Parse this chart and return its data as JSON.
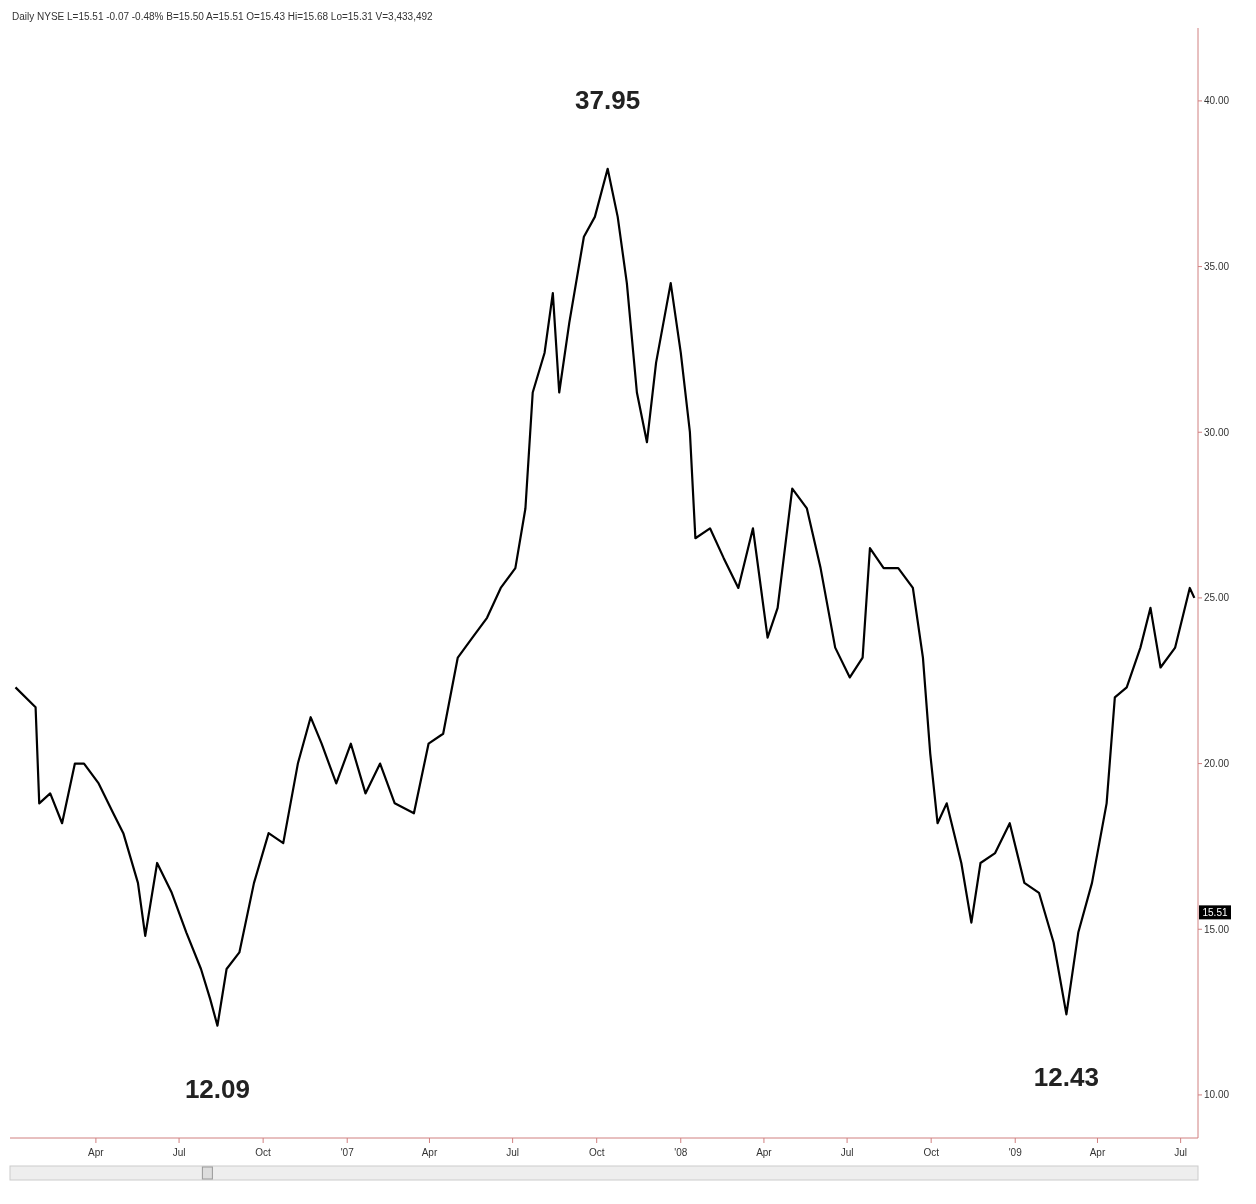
{
  "chart_data": {
    "type": "line",
    "title": "Daily NYSE L=15.51 -0.07 -0.48% B=15.50 A=15.51 O=15.43 Hi=15.68 Lo=15.31 V=3,433,492",
    "x": [
      "2006-01-03",
      "2006-01-25",
      "2006-01-29",
      "2006-02-10",
      "2006-02-23",
      "2006-03-09",
      "2006-03-19",
      "2006-04-04",
      "2006-04-20",
      "2006-05-01",
      "2006-05-17",
      "2006-05-25",
      "2006-06-07",
      "2006-06-23",
      "2006-07-09",
      "2006-07-25",
      "2006-08-04",
      "2006-08-12",
      "2006-08-22",
      "2006-09-05",
      "2006-09-21",
      "2006-10-07",
      "2006-10-23",
      "2006-11-08",
      "2006-11-22",
      "2006-12-04",
      "2006-12-20",
      "2007-01-05",
      "2007-01-21",
      "2007-02-06",
      "2007-02-22",
      "2007-03-15",
      "2007-03-31",
      "2007-04-16",
      "2007-05-02",
      "2007-05-18",
      "2007-06-03",
      "2007-06-18",
      "2007-07-04",
      "2007-07-15",
      "2007-07-23",
      "2007-08-05",
      "2007-08-14",
      "2007-08-21",
      "2007-09-01",
      "2007-09-17",
      "2007-09-29",
      "2007-10-13",
      "2007-10-24",
      "2007-11-03",
      "2007-11-14",
      "2007-11-25",
      "2007-12-05",
      "2007-12-21",
      "2008-01-01",
      "2008-01-11",
      "2008-01-17",
      "2008-02-02",
      "2008-02-17",
      "2008-03-04",
      "2008-03-20",
      "2008-04-05",
      "2008-04-16",
      "2008-05-02",
      "2008-05-18",
      "2008-06-02",
      "2008-06-18",
      "2008-07-04",
      "2008-07-18",
      "2008-07-26",
      "2008-08-10",
      "2008-08-26",
      "2008-09-11",
      "2008-09-22",
      "2008-09-30",
      "2008-10-08",
      "2008-10-18",
      "2008-11-03",
      "2008-11-14",
      "2008-11-24",
      "2008-12-10",
      "2008-12-26",
      "2009-01-11",
      "2009-01-27",
      "2009-02-12",
      "2009-02-26",
      "2009-03-11",
      "2009-03-26",
      "2009-04-11",
      "2009-04-20",
      "2009-05-03",
      "2009-05-18",
      "2009-05-29",
      "2009-06-09",
      "2009-06-25",
      "2009-07-11",
      "2009-07-16"
    ],
    "series": [
      {
        "color": "#000000",
        "values": [
          22.3,
          21.7,
          18.8,
          19.1,
          18.2,
          20.0,
          20.0,
          19.4,
          18.5,
          17.9,
          16.4,
          14.8,
          17.0,
          16.1,
          14.9,
          13.8,
          12.9,
          12.09,
          13.8,
          14.3,
          16.4,
          17.9,
          17.6,
          20.0,
          21.4,
          20.6,
          19.4,
          20.6,
          19.1,
          20.0,
          18.8,
          18.5,
          20.6,
          20.9,
          23.2,
          23.8,
          24.4,
          25.3,
          25.9,
          27.7,
          31.2,
          32.4,
          34.2,
          31.2,
          33.3,
          35.9,
          36.5,
          37.95,
          36.5,
          34.5,
          31.2,
          29.7,
          32.1,
          34.5,
          32.4,
          30.0,
          26.8,
          27.1,
          26.2,
          25.3,
          27.1,
          23.8,
          24.7,
          28.3,
          27.7,
          25.9,
          23.5,
          22.6,
          23.2,
          26.5,
          25.9,
          25.9,
          25.3,
          23.2,
          20.3,
          18.2,
          18.8,
          17.0,
          15.2,
          17.0,
          17.3,
          18.2,
          16.4,
          16.1,
          14.6,
          12.43,
          14.9,
          16.4,
          18.8,
          22.0,
          22.3,
          23.5,
          24.7,
          22.9,
          23.5,
          25.3,
          25.0
        ]
      }
    ],
    "xlim": [
      "2005-12-28",
      "2009-07-20"
    ],
    "xticks": [
      {
        "value": "2006-04-01",
        "label": "Apr"
      },
      {
        "value": "2006-07-01",
        "label": "Jul"
      },
      {
        "value": "2006-10-01",
        "label": "Oct"
      },
      {
        "value": "2007-01-01",
        "label": "'07"
      },
      {
        "value": "2007-04-01",
        "label": "Apr"
      },
      {
        "value": "2007-07-01",
        "label": "Jul"
      },
      {
        "value": "2007-10-01",
        "label": "Oct"
      },
      {
        "value": "2008-01-01",
        "label": "'08"
      },
      {
        "value": "2008-04-01",
        "label": "Apr"
      },
      {
        "value": "2008-07-01",
        "label": "Jul"
      },
      {
        "value": "2008-10-01",
        "label": "Oct"
      },
      {
        "value": "2009-01-01",
        "label": "'09"
      },
      {
        "value": "2009-04-01",
        "label": "Apr"
      },
      {
        "value": "2009-07-01",
        "label": "Jul"
      }
    ],
    "ylim": [
      8.7,
      42.2
    ],
    "yticks": [
      {
        "value": 10,
        "label": "10.00"
      },
      {
        "value": 15,
        "label": "15.00"
      },
      {
        "value": 20,
        "label": "20.00"
      },
      {
        "value": 25,
        "label": "25.00"
      },
      {
        "value": 30,
        "label": "30.00"
      },
      {
        "value": 35,
        "label": "35.00"
      },
      {
        "value": 40,
        "label": "40.00"
      }
    ],
    "annotations": [
      {
        "text": "15.51",
        "y": 15.51
      },
      {
        "text": "37.95",
        "x": "2007-10-13",
        "y": 37.95
      },
      {
        "text": "12.09",
        "x": "2006-08-12",
        "y": 12.09
      },
      {
        "text": "12.43",
        "x": "2009-02-26",
        "y": 12.43
      }
    ],
    "marker": "none",
    "line_style": "solid"
  }
}
